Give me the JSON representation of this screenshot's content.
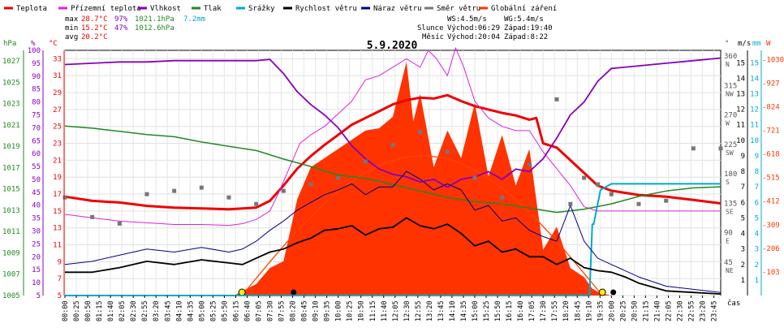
{
  "chart_data": {
    "type": "line",
    "title": "5.9.2020",
    "xlabel": "čas",
    "legend": [
      {
        "name": "Teplota",
        "color": "#ee0000"
      },
      {
        "name": "Přízemní teplota",
        "color": "#dd22dd"
      },
      {
        "name": "Vlhkost",
        "color": "#8800bb"
      },
      {
        "name": "Tlak",
        "color": "#228822"
      },
      {
        "name": "Srážky",
        "color": "#00aacc"
      },
      {
        "name": "Rychlost větru",
        "color": "#000000"
      },
      {
        "name": "Náraz větru",
        "color": "#000088"
      },
      {
        "name": "Směr větru",
        "color": "#777777"
      },
      {
        "name": "Globální záření",
        "color": "#ff3300"
      }
    ],
    "stats": {
      "max": {
        "label": "max",
        "temp": "28.7°C",
        "hum": "97%",
        "press": "1021.1hPa",
        "rain": "7.2mm"
      },
      "min": {
        "label": "min",
        "temp": "15.2°C",
        "hum": "47%",
        "press": "1012.6hPa"
      },
      "avg": {
        "label": "avg",
        "temp": "20.2°C"
      }
    },
    "info": {
      "ws": "WS:4.5m/s",
      "wg": "WG:5.4m/s",
      "sun_label": "Slunce",
      "sunrise": "Východ:06:29",
      "sunset": "Západ:19:40",
      "moon_label": "Měsíc",
      "moonrise": "Východ:20:04",
      "moonset": "Západ:8:22"
    },
    "axes": {
      "hpa": {
        "unit": "hPa",
        "ticks": [
          "1005",
          "1007",
          "1009",
          "1011",
          "1013",
          "1015",
          "1017",
          "1019",
          "1021",
          "1023",
          "1025",
          "1027"
        ]
      },
      "pct": {
        "unit": "%",
        "ticks": [
          "5",
          "10",
          "15",
          "20",
          "25",
          "30",
          "35",
          "40",
          "45",
          "50",
          "55",
          "60",
          "65",
          "70",
          "75",
          "80",
          "85",
          "90",
          "95",
          "100"
        ]
      },
      "deg": {
        "unit": "°C",
        "ticks": [
          "5",
          "7",
          "9",
          "11",
          "13",
          "15",
          "17",
          "19",
          "21",
          "23",
          "25",
          "27",
          "29",
          "31",
          "33"
        ]
      },
      "dir": {
        "unit": "°",
        "ticks": [
          {
            "deg": "45",
            "lab": "NE"
          },
          {
            "deg": "90",
            "lab": "E"
          },
          {
            "deg": "135",
            "lab": "SE"
          },
          {
            "deg": "180",
            "lab": "S"
          },
          {
            "deg": "225",
            "lab": "SW"
          },
          {
            "deg": "270",
            "lab": "W"
          },
          {
            "deg": "315",
            "lab": "NW"
          },
          {
            "deg": "360",
            "lab": "N"
          }
        ]
      },
      "ms": {
        "unit": "m/s",
        "ticks": [
          "1",
          "2",
          "3",
          "4",
          "5",
          "6",
          "7",
          "8",
          "9",
          "10",
          "11",
          "12",
          "13",
          "14",
          "15"
        ]
      },
      "mm": {
        "unit": "mm"
      },
      "w": {
        "unit": "W",
        "ticks": [
          "103",
          "206",
          "309",
          "412",
          "515",
          "618",
          "721",
          "824",
          "927",
          "1030"
        ]
      }
    },
    "x_ticks": [
      "00:00",
      "00:25",
      "00:50",
      "01:15",
      "01:40",
      "02:05",
      "02:30",
      "02:55",
      "03:20",
      "03:45",
      "04:10",
      "04:35",
      "05:00",
      "05:25",
      "05:50",
      "06:15",
      "06:40",
      "07:05",
      "07:30",
      "07:55",
      "08:20",
      "08:45",
      "09:10",
      "09:35",
      "10:00",
      "10:25",
      "10:50",
      "11:15",
      "11:40",
      "12:05",
      "12:30",
      "12:55",
      "13:20",
      "13:45",
      "14:10",
      "14:35",
      "15:00",
      "15:25",
      "15:50",
      "16:15",
      "16:40",
      "17:05",
      "17:30",
      "17:55",
      "18:20",
      "18:45",
      "19:10",
      "19:35",
      "20:00",
      "20:25",
      "20:50",
      "21:15",
      "21:40",
      "22:05",
      "22:30",
      "22:55",
      "23:20",
      "23:45"
    ],
    "x_range_hours": [
      0,
      24
    ],
    "series": [
      {
        "name": "Teplota",
        "unit": "°C",
        "x": [
          0,
          1,
          2,
          3,
          4,
          5,
          6,
          7,
          7.5,
          8,
          8.5,
          9,
          9.5,
          10,
          10.5,
          11,
          11.5,
          12,
          12.5,
          13,
          13.5,
          14,
          14.5,
          15,
          15.5,
          16,
          16.5,
          17,
          17.25,
          17.5,
          18,
          18.5,
          19,
          19.5,
          20,
          21,
          22,
          23,
          24
        ],
        "y": [
          16.7,
          16.2,
          16.0,
          15.6,
          15.4,
          15.3,
          15.2,
          15.4,
          16.2,
          18.0,
          20.0,
          21.5,
          22.8,
          24.0,
          25.2,
          26.0,
          26.8,
          27.6,
          28.1,
          28.4,
          28.3,
          28.7,
          28.0,
          27.4,
          27.0,
          26.6,
          26.3,
          25.8,
          26.0,
          23.0,
          22.5,
          21.0,
          19.5,
          18.0,
          17.4,
          16.9,
          16.7,
          16.3,
          15.9
        ]
      },
      {
        "name": "Přízemní teplota",
        "unit": "°C",
        "x": [
          0,
          0.5,
          1,
          1.5,
          2,
          3,
          4,
          5,
          6,
          6.5,
          7,
          7.5,
          7.8,
          8.2,
          8.6,
          9.0,
          9.5,
          10,
          10.5,
          11,
          11.5,
          12,
          12.5,
          13,
          13.3,
          13.6,
          14,
          14.3,
          14.6,
          15,
          15.5,
          16,
          16.5,
          17,
          17.5,
          18,
          18.5,
          19,
          19.5,
          20,
          21,
          22,
          23,
          24
        ],
        "y": [
          14.6,
          14.4,
          14.2,
          14.0,
          13.8,
          13.6,
          13.4,
          13.4,
          13.3,
          13.5,
          14.0,
          15.0,
          17.0,
          20.0,
          23.0,
          24.0,
          25.0,
          26.5,
          28.0,
          30.5,
          31.0,
          32.0,
          33.0,
          32.0,
          34.0,
          33.0,
          31.0,
          34.3,
          32.0,
          28.0,
          26.0,
          25.0,
          24.5,
          24.5,
          22.0,
          20.0,
          18.0,
          15.5,
          15.0,
          15.0,
          15.0,
          15.0,
          15.0,
          15.0
        ]
      },
      {
        "name": "Vlhkost",
        "unit": "%",
        "x": [
          0,
          1,
          2,
          3,
          4,
          5,
          6,
          7,
          7.5,
          8,
          8.5,
          9,
          9.5,
          10,
          10.5,
          11,
          11.5,
          12,
          12.5,
          13,
          13.5,
          14,
          14.5,
          15,
          15.5,
          16,
          16.5,
          17,
          17.5,
          18,
          18.5,
          19,
          19.5,
          20,
          21,
          22,
          23,
          24
        ],
        "y": [
          94.5,
          95,
          95.5,
          95.5,
          96,
          96,
          96,
          96,
          96.5,
          91,
          84,
          79,
          75,
          70,
          63,
          58,
          54,
          52,
          51,
          49,
          50,
          47,
          50,
          51,
          53,
          50,
          54,
          53,
          58,
          66,
          75,
          80,
          88,
          93,
          94,
          95,
          96,
          97
        ]
      },
      {
        "name": "Tlak",
        "unit": "hPa",
        "x": [
          0,
          1,
          2,
          3,
          4,
          5,
          6,
          7,
          8,
          9,
          10,
          11,
          12,
          13,
          14,
          15,
          16,
          17,
          18,
          19,
          20,
          21,
          22,
          23,
          24
        ],
        "y": [
          1020.9,
          1020.7,
          1020.4,
          1020.1,
          1019.9,
          1019.4,
          1019.0,
          1018.6,
          1017.8,
          1017.1,
          1016.3,
          1016.0,
          1015.4,
          1014.8,
          1014.2,
          1013.8,
          1013.6,
          1013.2,
          1012.8,
          1013.1,
          1013.6,
          1014.3,
          1014.8,
          1015.1,
          1015.2
        ]
      },
      {
        "name": "Srážky",
        "unit": "mm",
        "x": [
          0,
          19.0,
          19.2,
          19.3,
          19.35,
          19.6,
          20.0,
          21.0,
          24.0
        ],
        "y": [
          0,
          0,
          0,
          4.6,
          4.6,
          6.8,
          7.2,
          7.2,
          7.2
        ]
      },
      {
        "name": "Rychlost větru",
        "unit": "m/s",
        "x": [
          0,
          1,
          2,
          3,
          4,
          5,
          6,
          6.5,
          7,
          7.5,
          8,
          8.5,
          9,
          9.5,
          10,
          10.5,
          11,
          11.5,
          12,
          12.5,
          13,
          13.5,
          14,
          14.5,
          15,
          15.5,
          16,
          16.5,
          17,
          17.5,
          18,
          18.5,
          19,
          19.5,
          20,
          20.5,
          21,
          22,
          23,
          24
        ],
        "y": [
          1.5,
          1.5,
          1.8,
          2.2,
          2.0,
          2.3,
          2.1,
          2.0,
          2.4,
          2.8,
          3.0,
          3.4,
          3.7,
          4.2,
          4.3,
          4.5,
          3.9,
          4.3,
          4.4,
          5.0,
          4.5,
          4.3,
          4.6,
          4.0,
          3.2,
          3.5,
          2.8,
          3.0,
          2.5,
          2.5,
          2.0,
          2.4,
          1.8,
          1.6,
          1.5,
          1.2,
          0.8,
          0.3,
          0.2,
          0.1
        ]
      },
      {
        "name": "Náraz větru",
        "unit": "m/s",
        "x": [
          0,
          1,
          2,
          3,
          4,
          5,
          6,
          6.5,
          7,
          7.5,
          8,
          8.5,
          9,
          9.5,
          10,
          10.5,
          11,
          11.5,
          12,
          12.5,
          13,
          13.5,
          14,
          14.5,
          15,
          15.5,
          16,
          16.5,
          17,
          17.5,
          18,
          18.5,
          19,
          19.5,
          20,
          20.5,
          21,
          22,
          23,
          24
        ],
        "y": [
          2.0,
          2.2,
          2.6,
          3.0,
          2.8,
          3.1,
          2.8,
          3.0,
          3.5,
          4.2,
          4.8,
          5.5,
          6.0,
          6.5,
          6.8,
          7.2,
          6.5,
          7.0,
          7.0,
          8.0,
          7.5,
          6.8,
          7.2,
          6.8,
          5.5,
          5.8,
          4.8,
          5.0,
          4.2,
          3.8,
          3.5,
          5.8,
          3.5,
          2.4,
          2.0,
          1.6,
          1.2,
          0.6,
          0.4,
          0.2
        ]
      },
      {
        "name": "Směr větru",
        "unit": "°",
        "x": [
          0,
          1,
          2,
          3,
          4,
          5,
          6,
          7,
          8,
          9,
          10,
          11,
          12,
          13,
          14,
          15,
          16,
          17,
          18,
          18.5,
          19,
          19.5,
          20,
          21,
          22,
          23,
          24
        ],
        "y": [
          150,
          120,
          110,
          155,
          160,
          165,
          150,
          140,
          160,
          170,
          180,
          205,
          230,
          250,
          220,
          180,
          150,
          200,
          300,
          140,
          180,
          170,
          155,
          140,
          145,
          225,
          225
        ]
      },
      {
        "name": "Globální záření",
        "unit": "W/m²",
        "x": [
          0,
          6.2,
          6.5,
          7,
          7.5,
          8,
          8.5,
          9,
          9.5,
          10,
          10.5,
          11,
          11.5,
          12,
          12.25,
          12.5,
          12.75,
          13,
          13.5,
          14,
          14.5,
          15,
          15.5,
          16,
          16.5,
          17,
          17.5,
          18,
          18.5,
          19,
          19.3,
          19.6,
          20,
          24
        ],
        "y": [
          0,
          0,
          20,
          50,
          120,
          150,
          420,
          560,
          600,
          640,
          680,
          720,
          730,
          780,
          900,
          1020,
          760,
          880,
          560,
          720,
          600,
          840,
          520,
          700,
          480,
          640,
          200,
          300,
          120,
          80,
          30,
          10,
          0,
          0
        ]
      }
    ]
  }
}
